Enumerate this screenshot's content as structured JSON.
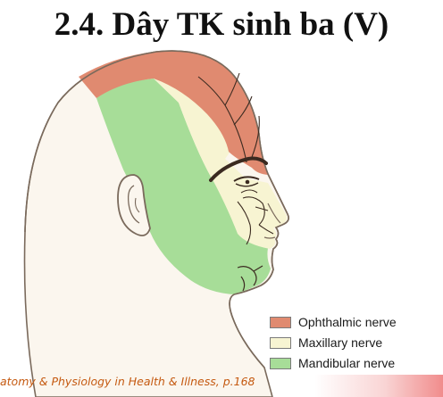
{
  "title": "2.4. Dây TK sinh ba (V)",
  "legend": [
    {
      "label": "Ophthalmic nerve",
      "color": "#e08a70"
    },
    {
      "label": "Maxillary nerve",
      "color": "#f7f4d2"
    },
    {
      "label": "Mandibular nerve",
      "color": "#a7dd98"
    }
  ],
  "citation": "atomy & Physiology in Health & Illness, p.168",
  "colors": {
    "skin": "#fbf6ee",
    "outline": "#7a6a5c",
    "nerve_lines": "#3b2a20",
    "citation": "#c55a11"
  }
}
